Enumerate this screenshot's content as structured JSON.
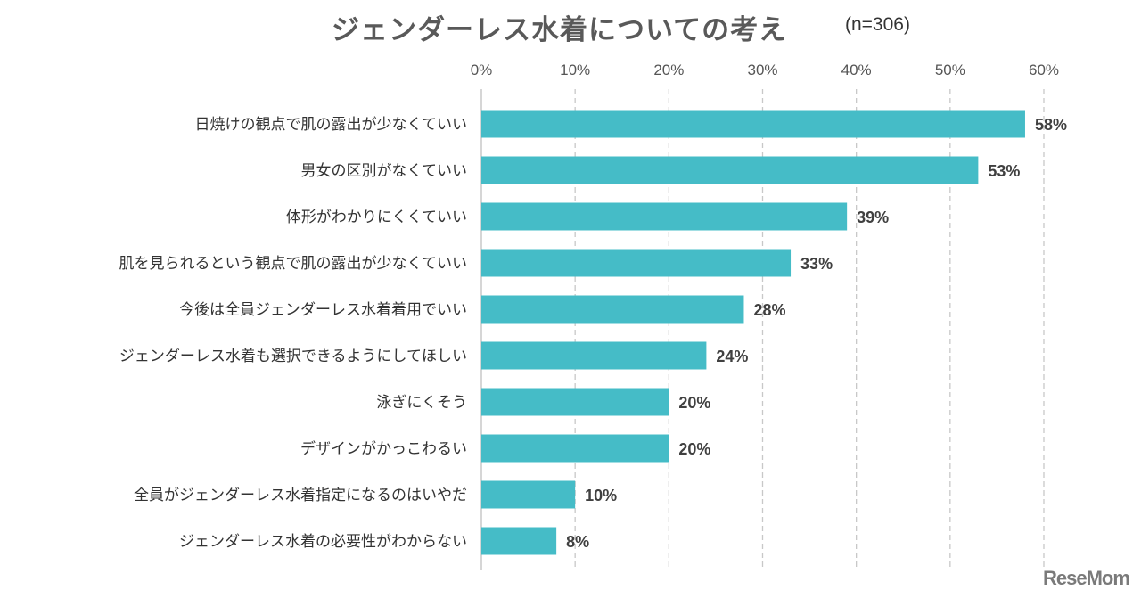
{
  "chart_data": {
    "type": "bar",
    "orientation": "horizontal",
    "title": "ジェンダーレス水着についての考え",
    "subtitle": "(n=306)",
    "categories": [
      "日焼けの観点で肌の露出が少なくていい",
      "男女の区別がなくていい",
      "体形がわかりにくくていい",
      "肌を見られるという観点で肌の露出が少なくていい",
      "今後は全員ジェンダーレス水着着用でいい",
      "ジェンダーレス水着も選択できるようにしてほしい",
      "泳ぎにくそう",
      "デザインがかっこわるい",
      "全員がジェンダーレス水着指定になるのはいやだ",
      "ジェンダーレス水着の必要性がわからない"
    ],
    "values": [
      58,
      53,
      39,
      33,
      28,
      24,
      20,
      20,
      10,
      8
    ],
    "data_labels": [
      "58%",
      "53%",
      "39%",
      "33%",
      "28%",
      "24%",
      "20%",
      "20%",
      "10%",
      "8%"
    ],
    "xlim": [
      0,
      60
    ],
    "xticks": [
      "0%",
      "10%",
      "20%",
      "30%",
      "40%",
      "50%",
      "60%"
    ],
    "xlabel": "",
    "ylabel": "",
    "grid": true,
    "bar_color": "#45bcc7"
  },
  "watermark": "ReseMom"
}
